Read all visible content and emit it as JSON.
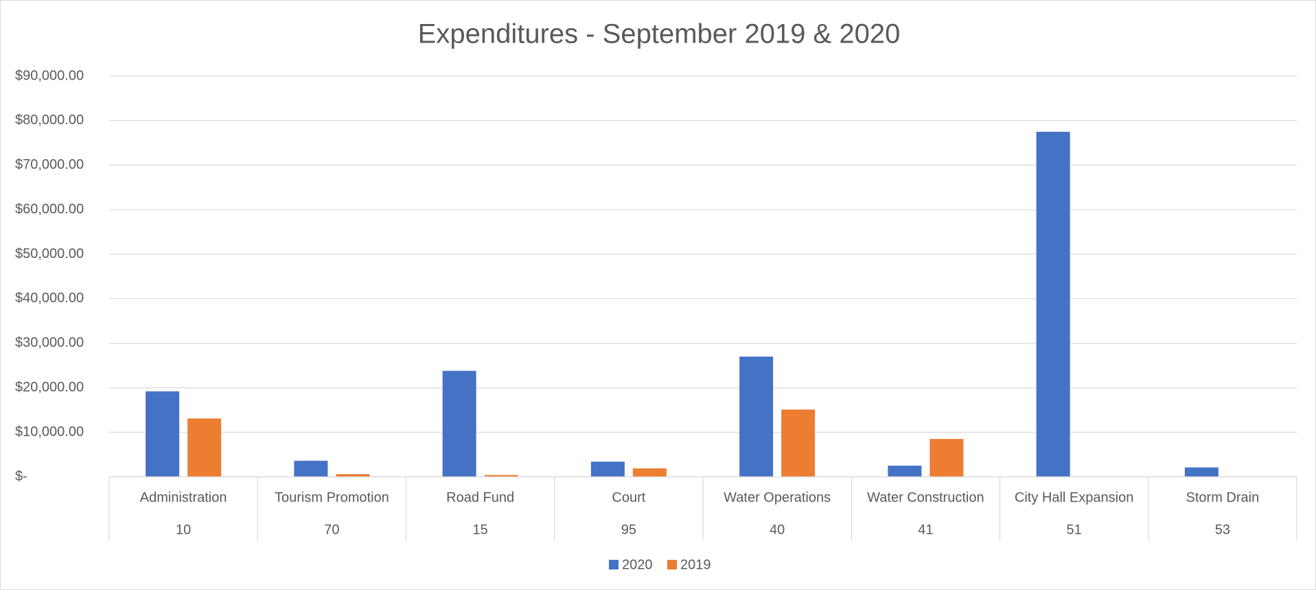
{
  "chart_data": {
    "type": "bar",
    "title": "Expenditures  - September 2019 & 2020",
    "categories": [
      "Administration",
      "Tourism Promotion",
      "Road Fund",
      "Court",
      "Water Operations",
      "Water Construction",
      "City Hall Expansion",
      "Storm Drain"
    ],
    "codes": [
      "10",
      "70",
      "15",
      "95",
      "40",
      "41",
      "51",
      "53"
    ],
    "series": [
      {
        "name": "2020",
        "color": "#4472c4",
        "values": [
          19200,
          3600,
          23800,
          3400,
          27000,
          2500,
          77500,
          2100
        ]
      },
      {
        "name": "2019",
        "color": "#ed7d31",
        "values": [
          13100,
          600,
          400,
          1900,
          15100,
          8500,
          0,
          0
        ]
      }
    ],
    "ylim": [
      0,
      90000
    ],
    "yticks": [
      {
        "value": 0,
        "label": "$-"
      },
      {
        "value": 10000,
        "label": "$10,000.00"
      },
      {
        "value": 20000,
        "label": "$20,000.00"
      },
      {
        "value": 30000,
        "label": "$30,000.00"
      },
      {
        "value": 40000,
        "label": "$40,000.00"
      },
      {
        "value": 50000,
        "label": "$50,000.00"
      },
      {
        "value": 60000,
        "label": "$60,000.00"
      },
      {
        "value": 70000,
        "label": "$70,000.00"
      },
      {
        "value": 80000,
        "label": "$80,000.00"
      },
      {
        "value": 90000,
        "label": "$90,000.00"
      }
    ],
    "grid": true,
    "legend": "bottom"
  }
}
